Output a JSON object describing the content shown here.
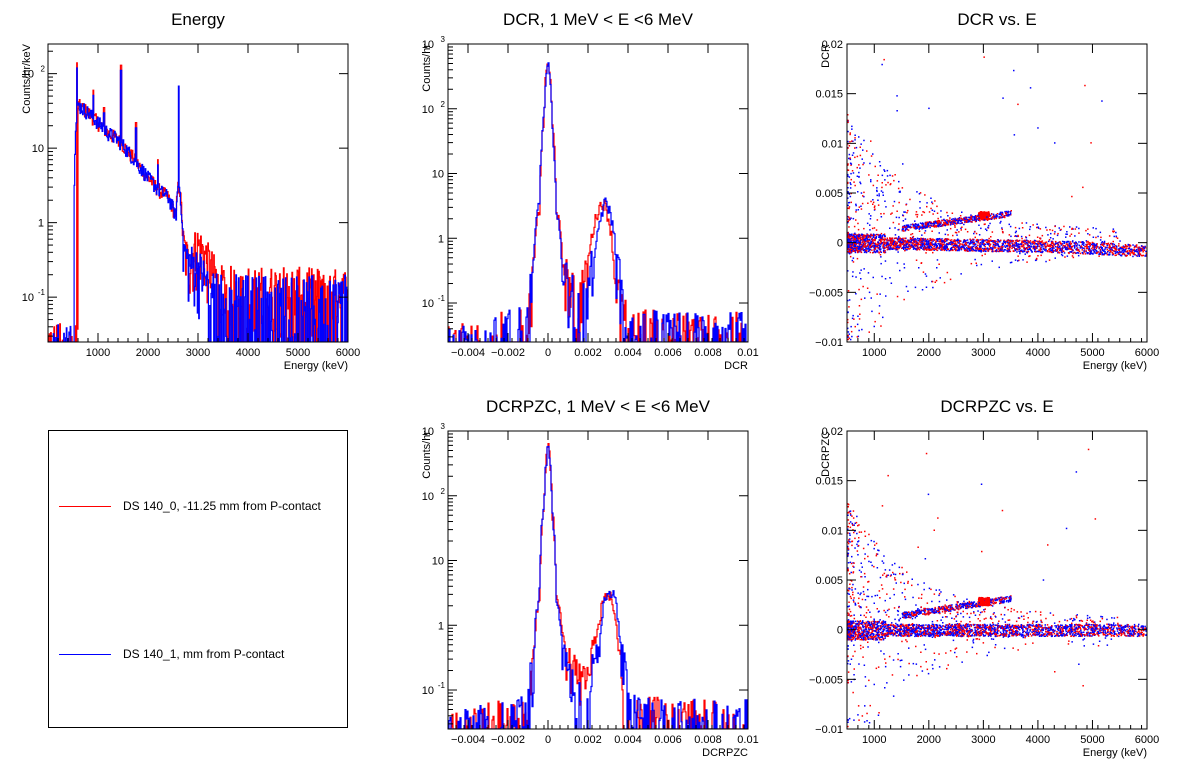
{
  "colors": {
    "series0": "#ff0000",
    "series1": "#0000ff",
    "axis": "#000000"
  },
  "legend": {
    "entries": [
      {
        "label": "DS 140_0, -11.25 mm from P-contact",
        "color": "#ff0000"
      },
      {
        "label": "DS 140_1,  mm from P-contact",
        "color": "#0000ff"
      }
    ]
  },
  "chart_data": [
    {
      "id": "energy",
      "type": "line",
      "title": "Energy",
      "xlabel": "Energy (keV)",
      "ylabel": "Counts/hr/keV",
      "xlim": [
        0,
        6000
      ],
      "ylim": [
        0.025,
        250
      ],
      "yscale": "log",
      "xticks": [
        1000,
        2000,
        3000,
        4000,
        5000,
        6000
      ],
      "yticks": [
        {
          "v": 0.1,
          "t": "10",
          "sup": "-1"
        },
        {
          "v": 1,
          "t": "1"
        },
        {
          "v": 10,
          "t": "10"
        },
        {
          "v": 100,
          "t": "10",
          "sup": "2"
        }
      ],
      "series": [
        {
          "color": "#ff0000",
          "x": [
            600,
            800,
            1000,
            1200,
            1400,
            1600,
            1800,
            2000,
            2200,
            2400,
            2560,
            2615,
            2700,
            2800,
            3000,
            3200,
            3400,
            4000,
            5000,
            6000
          ],
          "y": [
            38,
            30,
            22,
            16,
            13,
            9,
            6,
            4,
            2.8,
            2.2,
            1.2,
            3.5,
            0.5,
            0.3,
            0.5,
            0.3,
            0.15,
            0.14,
            0.14,
            0.13
          ]
        },
        {
          "color": "#0000ff",
          "x": [
            520,
            600,
            800,
            1000,
            1200,
            1400,
            1600,
            1800,
            2000,
            2200,
            2400,
            2560,
            2615,
            2700,
            2800,
            3000,
            3200,
            3400,
            4000,
            5000,
            6000
          ],
          "y": [
            0.025,
            38,
            30,
            22,
            16,
            13,
            9,
            6,
            4,
            2.8,
            2.2,
            1.2,
            3.5,
            0.45,
            0.3,
            0.25,
            0.15,
            0.12,
            0.11,
            0.11,
            0.11
          ]
        }
      ],
      "peaks": [
        {
          "x": 580,
          "y": 140
        },
        {
          "x": 910,
          "y": 60
        },
        {
          "x": 1120,
          "y": 35
        },
        {
          "x": 1460,
          "y": 130
        },
        {
          "x": 1760,
          "y": 22
        },
        {
          "x": 2200,
          "y": 7
        },
        {
          "x": 2614,
          "y": 80
        }
      ]
    },
    {
      "id": "dcr",
      "type": "line",
      "title": "DCR, 1 MeV < E <6 MeV",
      "xlabel": "DCR",
      "ylabel": "Counts/hr",
      "xlim": [
        -0.005,
        0.01
      ],
      "ylim": [
        0.025,
        1000
      ],
      "yscale": "log",
      "xticks": [
        {
          "v": -0.004,
          "t": "−0.004"
        },
        {
          "v": -0.002,
          "t": "−0.002"
        },
        {
          "v": 0,
          "t": "0"
        },
        {
          "v": 0.002,
          "t": "0.002"
        },
        {
          "v": 0.004,
          "t": "0.004"
        },
        {
          "v": 0.006,
          "t": "0.006"
        },
        {
          "v": 0.008,
          "t": "0.008"
        },
        {
          "v": 0.01,
          "t": "0.01"
        }
      ],
      "yticks": [
        {
          "v": 0.1,
          "t": "10",
          "sup": "-1"
        },
        {
          "v": 1,
          "t": "1"
        },
        {
          "v": 10,
          "t": "10"
        },
        {
          "v": 100,
          "t": "10",
          "sup": "2"
        },
        {
          "v": 1000,
          "t": "10",
          "sup": "3"
        }
      ],
      "series": [
        {
          "color": "#ff0000",
          "x": [
            -0.0045,
            -0.001,
            -0.0007,
            -0.0004,
            -0.0002,
            0.0,
            0.0002,
            0.0004,
            0.0007,
            0.001,
            0.0015,
            0.002,
            0.0023,
            0.0026,
            0.0028,
            0.003,
            0.0033,
            0.0036,
            0.004,
            0.006,
            0.0095
          ],
          "y": [
            0.025,
            0.05,
            0.3,
            3,
            60,
            560,
            60,
            3,
            0.5,
            0.2,
            0.12,
            0.3,
            1.5,
            3.2,
            3.5,
            2.2,
            0.3,
            0.12,
            0.05,
            0.04,
            0.04
          ]
        },
        {
          "color": "#0000ff",
          "x": [
            -0.0045,
            -0.001,
            -0.0007,
            -0.0004,
            -0.0002,
            0.0,
            0.0002,
            0.0004,
            0.0007,
            0.001,
            0.0015,
            0.002,
            0.0024,
            0.0027,
            0.0029,
            0.0031,
            0.0034,
            0.0037,
            0.004,
            0.006,
            0.0095
          ],
          "y": [
            0.025,
            0.05,
            0.35,
            4,
            70,
            480,
            50,
            2.5,
            0.4,
            0.2,
            0.1,
            0.15,
            0.6,
            2.5,
            3.8,
            2.5,
            0.5,
            0.12,
            0.05,
            0.04,
            0.04
          ]
        }
      ]
    },
    {
      "id": "dcr_vs_e",
      "type": "scatter",
      "title": "DCR vs. E",
      "xlabel": "Energy (keV)",
      "ylabel": "DCR",
      "xlim": [
        500,
        6000
      ],
      "ylim": [
        -0.01,
        0.02
      ],
      "xticks": [
        1000,
        2000,
        3000,
        4000,
        5000,
        6000
      ],
      "yticks": [
        {
          "v": -0.01,
          "t": "−0.01"
        },
        {
          "v": -0.005,
          "t": "−0.005"
        },
        {
          "v": 0,
          "t": "0"
        },
        {
          "v": 0.005,
          "t": "0.005"
        },
        {
          "v": 0.01,
          "t": "0.01"
        },
        {
          "v": 0.015,
          "t": "0.015"
        },
        {
          "v": 0.02,
          "t": "0.02"
        }
      ],
      "band": {
        "x": [
          500,
          1000,
          2000,
          3000,
          4000,
          5000,
          6000
        ],
        "y": [
          0.0,
          0.0,
          -0.0001,
          -0.0002,
          -0.0003,
          -0.0005,
          -0.0008
        ]
      },
      "diagonal_band": {
        "x": [
          1500,
          3500
        ],
        "y": [
          0.0015,
          0.003
        ]
      },
      "cluster": {
        "x": 3000,
        "y": 0.0028
      }
    },
    {
      "id": "dcrpzc",
      "type": "line",
      "title": "DCRPZC, 1 MeV < E <6 MeV",
      "xlabel": "DCRPZC",
      "ylabel": "Counts/hr",
      "xlim": [
        -0.005,
        0.01
      ],
      "ylim": [
        0.025,
        1000
      ],
      "yscale": "log",
      "xticks": [
        {
          "v": -0.004,
          "t": "−0.004"
        },
        {
          "v": -0.002,
          "t": "−0.002"
        },
        {
          "v": 0,
          "t": "0"
        },
        {
          "v": 0.002,
          "t": "0.002"
        },
        {
          "v": 0.004,
          "t": "0.004"
        },
        {
          "v": 0.006,
          "t": "0.006"
        },
        {
          "v": 0.008,
          "t": "0.008"
        },
        {
          "v": 0.01,
          "t": "0.01"
        }
      ],
      "yticks": [
        {
          "v": 0.1,
          "t": "10",
          "sup": "-1"
        },
        {
          "v": 1,
          "t": "1"
        },
        {
          "v": 10,
          "t": "10"
        },
        {
          "v": 100,
          "t": "10",
          "sup": "2"
        },
        {
          "v": 1000,
          "t": "10",
          "sup": "3"
        }
      ],
      "series": [
        {
          "color": "#ff0000",
          "x": [
            -0.0045,
            -0.001,
            -0.0007,
            -0.0004,
            -0.0002,
            0.0,
            0.0002,
            0.0004,
            0.0007,
            0.001,
            0.0015,
            0.002,
            0.0025,
            0.0028,
            0.003,
            0.0032,
            0.0035,
            0.0038,
            0.0042,
            0.006,
            0.0095
          ],
          "y": [
            0.025,
            0.05,
            0.3,
            3,
            60,
            650,
            60,
            3,
            0.8,
            0.3,
            0.15,
            0.15,
            0.8,
            2.5,
            3,
            2.5,
            0.4,
            0.12,
            0.05,
            0.04,
            0.04
          ]
        },
        {
          "color": "#0000ff",
          "x": [
            -0.0045,
            -0.001,
            -0.0007,
            -0.0004,
            -0.0002,
            0.0,
            0.0002,
            0.0004,
            0.0007,
            0.001,
            0.0015,
            0.002,
            0.0026,
            0.0029,
            0.0031,
            0.0033,
            0.0036,
            0.0039,
            0.0042,
            0.006,
            0.0095
          ],
          "y": [
            0.025,
            0.05,
            0.3,
            3.5,
            70,
            560,
            55,
            2.5,
            0.5,
            0.2,
            0.1,
            0.1,
            0.5,
            2.8,
            3.5,
            2.8,
            0.5,
            0.12,
            0.05,
            0.04,
            0.04
          ]
        }
      ]
    },
    {
      "id": "dcrpzc_vs_e",
      "type": "scatter",
      "title": "DCRPZC vs. E",
      "xlabel": "Energy (keV)",
      "ylabel": "DCRPZC",
      "xlim": [
        500,
        6000
      ],
      "ylim": [
        -0.01,
        0.02
      ],
      "xticks": [
        1000,
        2000,
        3000,
        4000,
        5000,
        6000
      ],
      "yticks": [
        {
          "v": -0.01,
          "t": "−0.01"
        },
        {
          "v": -0.005,
          "t": "−0.005"
        },
        {
          "v": 0,
          "t": "0"
        },
        {
          "v": 0.005,
          "t": "0.005"
        },
        {
          "v": 0.01,
          "t": "0.01"
        },
        {
          "v": 0.015,
          "t": "0.015"
        },
        {
          "v": 0.02,
          "t": "0.02"
        }
      ],
      "band": {
        "x": [
          500,
          1000,
          2000,
          3000,
          4000,
          5000,
          6000
        ],
        "y": [
          0.0,
          0.0,
          0.0,
          0.0,
          0.0,
          0.0,
          0.0
        ]
      },
      "diagonal_band": {
        "x": [
          1500,
          3500
        ],
        "y": [
          0.0015,
          0.0032
        ]
      },
      "cluster": {
        "x": 3000,
        "y": 0.0029
      }
    }
  ]
}
